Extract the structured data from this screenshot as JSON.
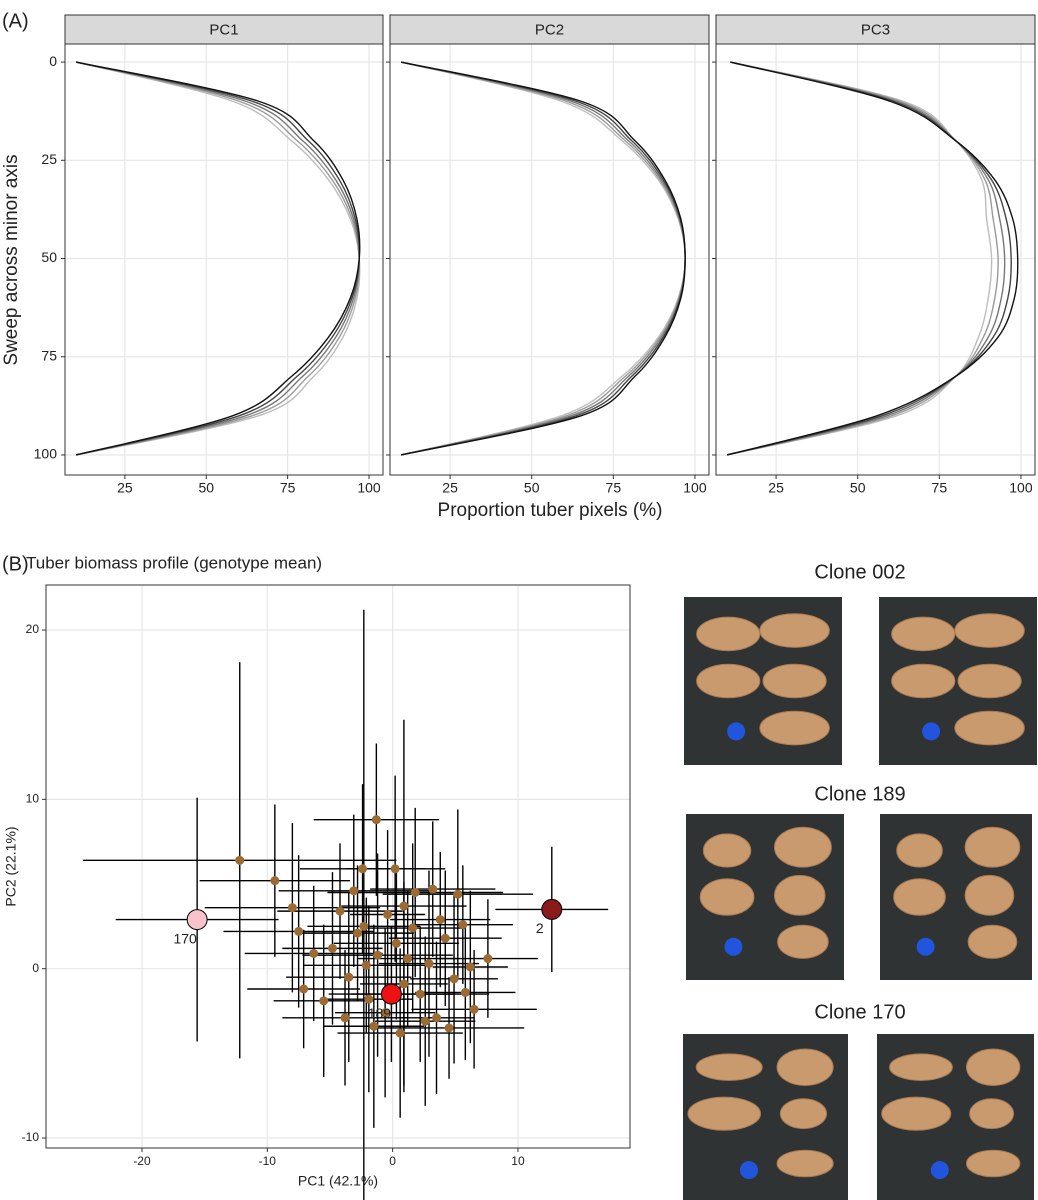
{
  "chart_data": [
    {
      "type": "line",
      "panel_label": "(A)",
      "ylabel": "Sweep across minor axis",
      "xlabel": "Proportion tuber pixels (%)",
      "xlim": [
        6.6,
        104.3
      ],
      "xticks": [
        25,
        50,
        75,
        100
      ],
      "ylim": [
        -4.6,
        105.1
      ],
      "y_reversed": true,
      "yticks": [
        0,
        25,
        50,
        75,
        100
      ],
      "grid": true,
      "y": [
        0,
        10,
        20,
        30,
        40,
        50,
        60,
        70,
        80,
        90,
        100
      ],
      "facets": [
        {
          "title": "PC1",
          "series": [
            {
              "color": "#111111",
              "values": [
                10,
                66.2,
                83,
                92,
                96.3,
                97,
                94.3,
                87.6,
                76.2,
                58.2,
                10
              ]
            },
            {
              "color": "#444444",
              "values": [
                10,
                64.2,
                81.3,
                90.9,
                95.8,
                97,
                94.8,
                88.7,
                77.9,
                60.2,
                10
              ]
            },
            {
              "color": "#777777",
              "values": [
                10,
                62.2,
                79.6,
                89.8,
                95.3,
                97,
                95.3,
                89.8,
                79.6,
                62.2,
                10
              ]
            },
            {
              "color": "#9a9a9a",
              "values": [
                10,
                60.2,
                77.9,
                88.7,
                94.8,
                97,
                95.8,
                90.9,
                81.3,
                64.2,
                10
              ]
            },
            {
              "color": "#bdbdbd",
              "values": [
                10,
                58.2,
                76.2,
                87.6,
                94.3,
                97,
                96.3,
                92,
                83,
                66.2,
                10
              ]
            }
          ]
        },
        {
          "title": "PC2",
          "series": [
            {
              "color": "#111111",
              "values": [
                10,
                65.2,
                81.6,
                90.8,
                95.7,
                97,
                95.7,
                90.8,
                81.6,
                65.2,
                10
              ]
            },
            {
              "color": "#444444",
              "values": [
                10,
                63.7,
                80.6,
                90.3,
                95.5,
                97,
                95.5,
                90.3,
                80.6,
                63.7,
                10
              ]
            },
            {
              "color": "#777777",
              "values": [
                10,
                62.2,
                79.6,
                89.8,
                95.3,
                97,
                95.3,
                89.8,
                79.6,
                62.2,
                10
              ]
            },
            {
              "color": "#9a9a9a",
              "values": [
                10,
                60.7,
                78.6,
                89.3,
                95.1,
                97,
                95.1,
                89.3,
                78.6,
                60.7,
                10
              ]
            },
            {
              "color": "#bdbdbd",
              "values": [
                10,
                59.2,
                77.6,
                88.8,
                94.9,
                97,
                94.9,
                88.8,
                77.6,
                59.2,
                10
              ]
            }
          ]
        },
        {
          "title": "PC3",
          "series": [
            {
              "color": "#111111",
              "values": [
                11,
                60,
                80,
                92,
                97.5,
                99,
                98,
                93,
                80,
                56,
                10
              ]
            },
            {
              "color": "#444444",
              "values": [
                11,
                61,
                80,
                91,
                95.5,
                97,
                96,
                91.5,
                80,
                57.5,
                10
              ]
            },
            {
              "color": "#777777",
              "values": [
                11,
                62,
                80,
                90,
                93.5,
                95,
                94,
                90,
                80,
                59,
                10
              ]
            },
            {
              "color": "#9a9a9a",
              "values": [
                11,
                63,
                80,
                89,
                91.5,
                93,
                92,
                88.5,
                80,
                60.5,
                10
              ]
            },
            {
              "color": "#bdbdbd",
              "values": [
                11,
                64,
                80,
                88,
                89.5,
                91,
                90,
                87,
                80,
                62,
                10
              ]
            }
          ]
        }
      ]
    },
    {
      "type": "scatter",
      "panel_label": "(B)",
      "title": "Tuber biomass profile (genotype mean)",
      "xlabel": "PC1 (42.1%)",
      "ylabel": "PC2 (22.1%)",
      "xlim": [
        -27.66,
        18.94
      ],
      "xticks": [
        -20,
        -10,
        0,
        10
      ],
      "ylim": [
        -10.59,
        22.66
      ],
      "yticks": [
        -10,
        0,
        10,
        20
      ],
      "grid": true,
      "color": "#9c6b33",
      "x": [
        -4.8,
        -3.5,
        -2.8,
        -1.9,
        -1.2,
        -0.6,
        0.3,
        0.9,
        1.6,
        2.2,
        2.9,
        3.5,
        4.2,
        4.9,
        5.6,
        6.2,
        7.6,
        -5.5,
        -6.3,
        -7.1,
        -7.5,
        -8,
        -4.2,
        -3.1,
        -2.4,
        0.2,
        1.8,
        3.2,
        5.2,
        -1.5,
        0.6,
        2.6,
        4.5,
        -3.8,
        6.5,
        -0.4,
        1.2,
        -2.1,
        3.8,
        5.8,
        -12.2,
        -2.3,
        -9.4,
        -1.3,
        0.9
      ],
      "y": [
        1.2,
        -0.5,
        2.1,
        -1.8,
        0.8,
        -2.6,
        1.5,
        -0.9,
        2.4,
        -1.5,
        0.3,
        -2.9,
        1.8,
        -0.6,
        2.6,
        0.1,
        0.6,
        -1.9,
        0.9,
        -1.2,
        2.2,
        3.6,
        3.4,
        4.6,
        5.9,
        5.9,
        4.5,
        4.7,
        4.4,
        -3.4,
        -3.8,
        -3.1,
        -3.5,
        -2.9,
        -2.4,
        3.2,
        0.6,
        0.2,
        2.9,
        -1.4,
        6.4,
        2.5,
        5.2,
        8.8,
        3.7
      ],
      "xerr": [
        4,
        5,
        4.5,
        3.5,
        6,
        4,
        5,
        3.5,
        4,
        5.5,
        4,
        3,
        4.5,
        3.5,
        4,
        3,
        4,
        4,
        5.5,
        4.5,
        6,
        7,
        5,
        6,
        5,
        4,
        7,
        5,
        6,
        4,
        5,
        4,
        6,
        5,
        5,
        3,
        4,
        5,
        4,
        4,
        12.5,
        4.5,
        6,
        5,
        5
      ],
      "yerr": [
        4.5,
        5,
        4,
        5.5,
        6,
        5,
        4.5,
        6,
        5,
        4,
        5.5,
        4.5,
        4,
        5,
        3.5,
        4.5,
        3.5,
        4.5,
        4,
        3.5,
        4.5,
        5,
        4,
        4.5,
        5,
        5.5,
        5,
        4,
        5,
        6,
        5,
        5,
        3,
        4,
        3.5,
        5,
        4,
        4,
        4,
        4,
        11.7,
        18.7,
        4.5,
        4.5,
        11
      ],
      "highlights": [
        {
          "label": "170",
          "color": "#f8c3cb",
          "label_color": "#f4a7b5",
          "x": -15.6,
          "y": 2.9,
          "xerr": 6.5,
          "yerr": 7.2
        },
        {
          "label": "2",
          "color": "#8b1a1a",
          "label_color": "#a01818",
          "x": 12.7,
          "y": 3.5,
          "xerr": 4.5,
          "yerr": 3.7
        },
        {
          "label": "189",
          "color": "#ee1111",
          "label_color": "#dd1111",
          "x": -0.1,
          "y": -1.5,
          "xerr": 5,
          "yerr": 4
        }
      ]
    }
  ],
  "photos": [
    {
      "title": "Clone 002",
      "color": "#b31212"
    },
    {
      "title": "Clone 189",
      "color": "#e41d1d"
    },
    {
      "title": "Clone 170",
      "color": "#f2a6c4"
    }
  ]
}
